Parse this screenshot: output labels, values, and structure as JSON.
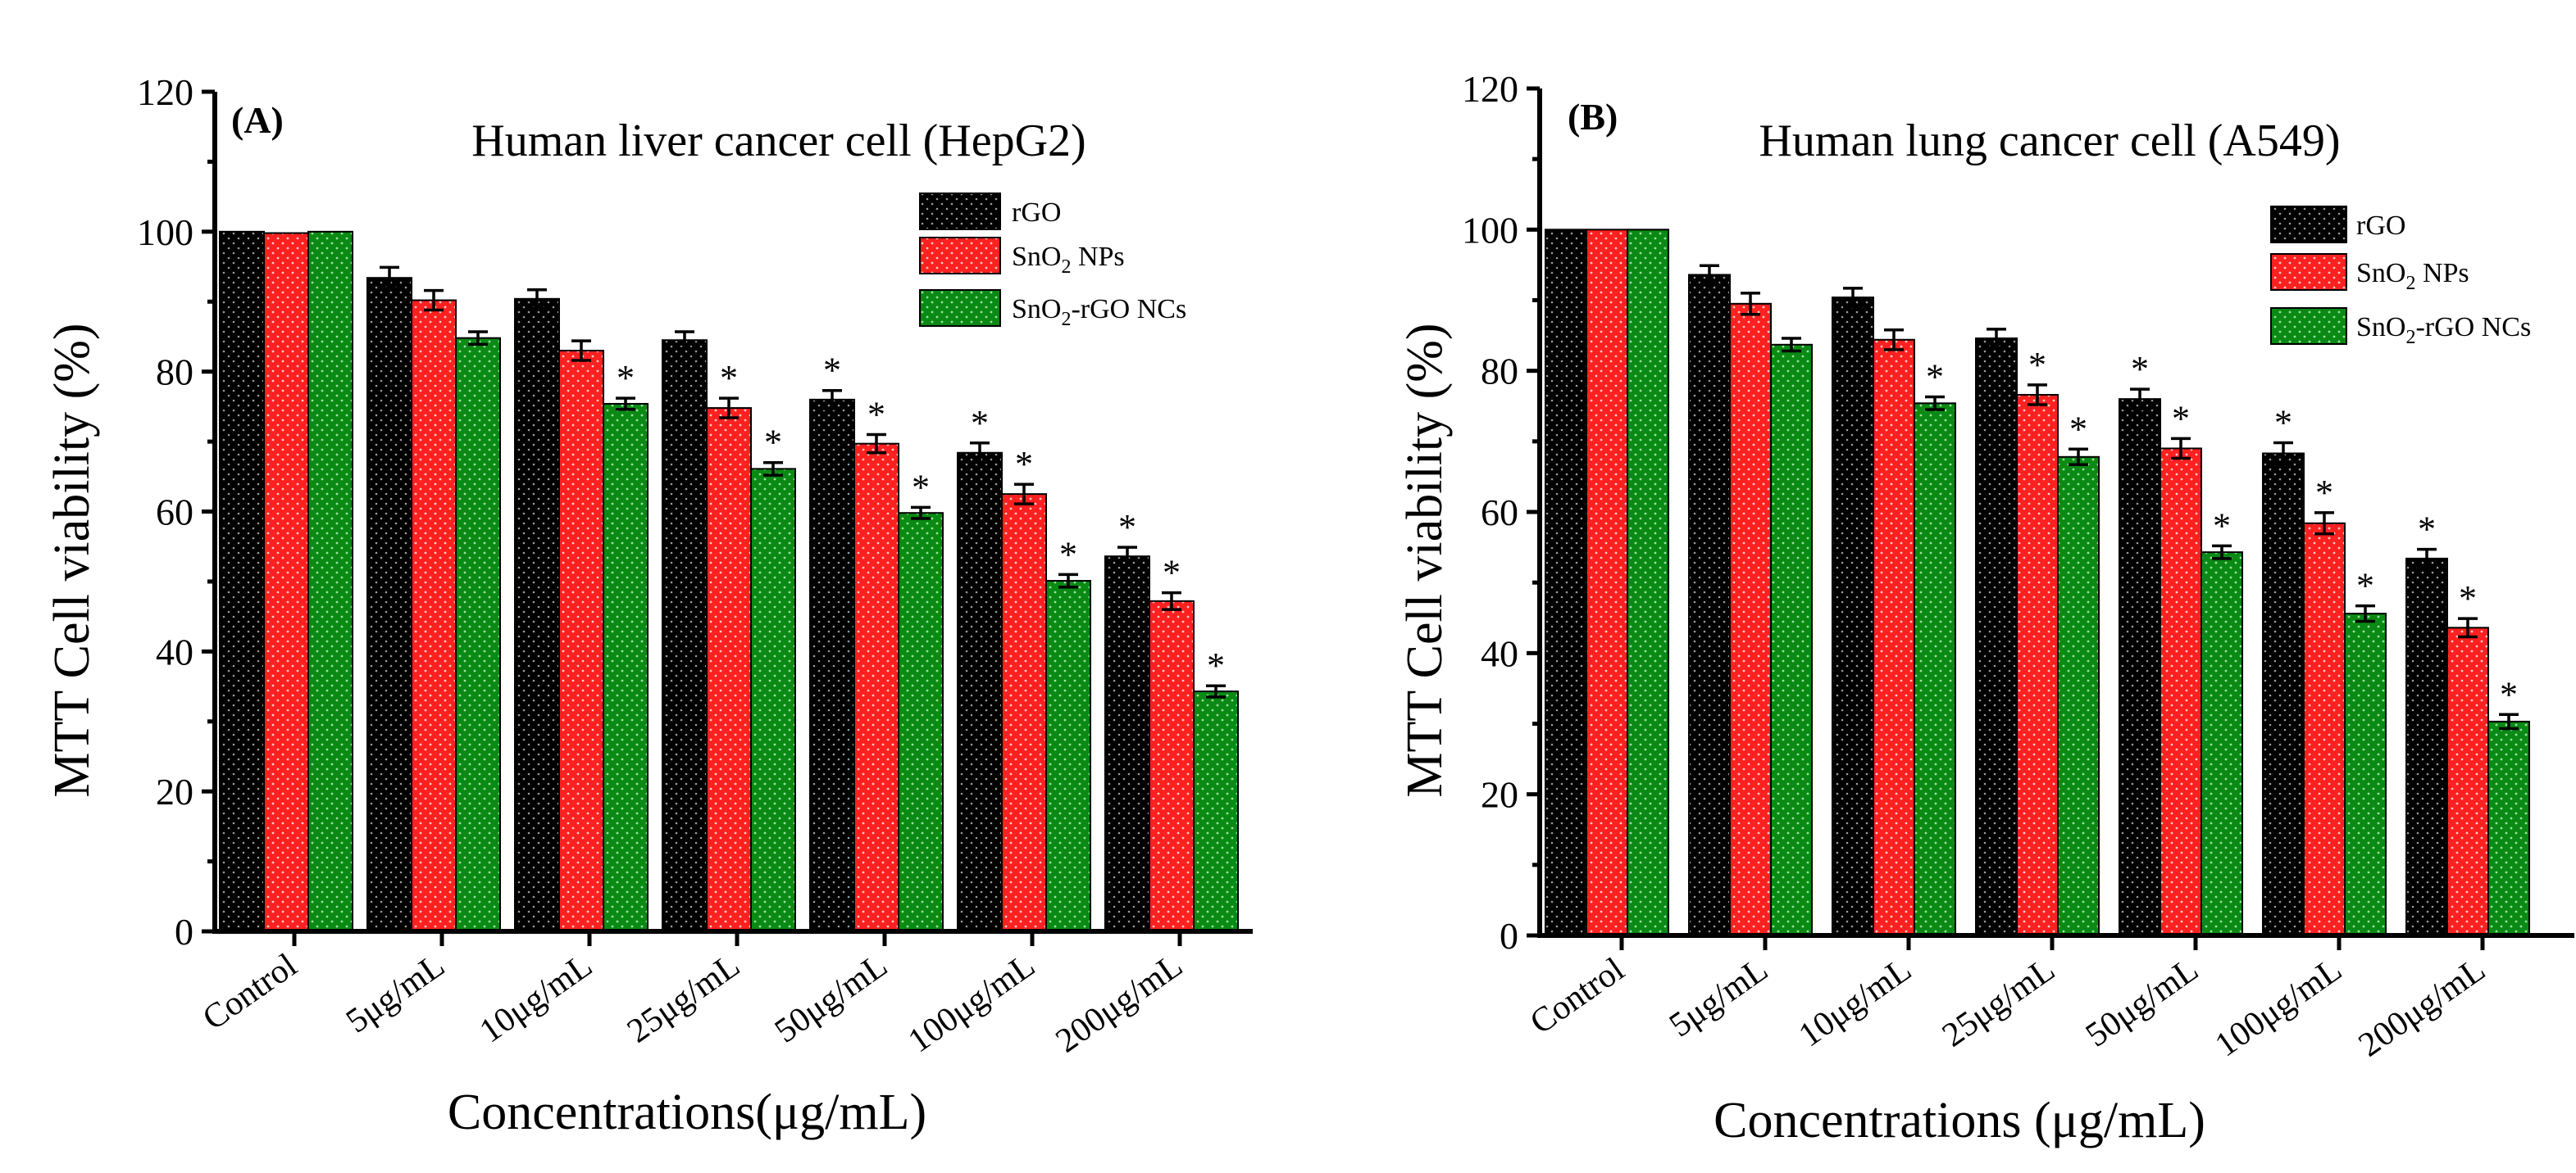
{
  "colors": {
    "rGO": "#000000",
    "SnO2 NPs": "#ff2020",
    "SnO2-rGO NCs": "#0a8a14"
  },
  "chart_data": [
    {
      "type": "bar",
      "panel": "(A)",
      "title": "Human liver cancer cell (HepG2)",
      "xlabel": "Concentrations(μg/mL)",
      "ylabel": "MTT Cell viability (%)",
      "ylim": [
        0,
        120
      ],
      "yticks": [
        "0",
        "20",
        "40",
        "60",
        "80",
        "100",
        "120"
      ],
      "legend_position": "top-right",
      "categories": [
        "Control",
        "5μg/mL",
        "10μg/mL",
        "25μg/mL",
        "50μg/mL",
        "100μg/mL",
        "200μg/mL"
      ],
      "series": [
        {
          "name": "rGO",
          "values": [
            100,
            93.4,
            90.4,
            84.5,
            76,
            68.4,
            53.6
          ],
          "errors": [
            0,
            1.5,
            1.3,
            1.2,
            1.3,
            1.4,
            1.3
          ],
          "significant": [
            false,
            false,
            false,
            false,
            true,
            true,
            true
          ]
        },
        {
          "name": "SnO2 NPs",
          "values": [
            99.8,
            90.2,
            83,
            74.8,
            69.7,
            62.5,
            47.2
          ],
          "errors": [
            0,
            1.4,
            1.4,
            1.4,
            1.3,
            1.4,
            1.2
          ],
          "significant": [
            false,
            false,
            false,
            true,
            true,
            true,
            true
          ]
        },
        {
          "name": "SnO2-rGO NCs",
          "values": [
            100,
            84.8,
            75.4,
            66.1,
            59.8,
            50.1,
            34.3
          ],
          "errors": [
            0,
            0.9,
            0.8,
            0.9,
            0.8,
            0.9,
            0.8
          ],
          "significant": [
            false,
            false,
            true,
            true,
            true,
            true,
            true
          ]
        }
      ],
      "legend": [
        "rGO",
        "SnO2 NPs",
        "SnO2-rGO NCs"
      ],
      "annotation": "*"
    },
    {
      "type": "bar",
      "panel": "(B)",
      "title": "Human lung cancer cell (A549)",
      "xlabel": "Concentrations (μg/mL)",
      "ylabel": "MTT Cell viability (%)",
      "ylim": [
        0,
        120
      ],
      "yticks": [
        "0",
        "20",
        "40",
        "60",
        "80",
        "100",
        "120"
      ],
      "legend_position": "top-right",
      "categories": [
        "Control",
        "5μg/mL",
        "10μg/mL",
        "25μg/mL",
        "50μg/mL",
        "100μg/mL",
        "200μg/mL"
      ],
      "series": [
        {
          "name": "rGO",
          "values": [
            100,
            93.6,
            90.4,
            84.6,
            76,
            68.3,
            53.4
          ],
          "errors": [
            0,
            1.3,
            1.3,
            1.3,
            1.4,
            1.5,
            1.3
          ],
          "significant": [
            false,
            false,
            false,
            false,
            true,
            true,
            true
          ]
        },
        {
          "name": "SnO2 NPs",
          "values": [
            100,
            89.5,
            84.4,
            76.6,
            69,
            58.4,
            43.6
          ],
          "errors": [
            0,
            1.5,
            1.4,
            1.4,
            1.4,
            1.5,
            1.3
          ],
          "significant": [
            false,
            false,
            false,
            true,
            true,
            true,
            true
          ]
        },
        {
          "name": "SnO2-rGO NCs",
          "values": [
            100,
            83.7,
            75.4,
            67.8,
            54.3,
            45.6,
            30.3
          ],
          "errors": [
            0,
            0.9,
            0.9,
            1.1,
            0.9,
            1.1,
            1.0
          ],
          "significant": [
            false,
            false,
            true,
            true,
            true,
            true,
            true
          ]
        }
      ],
      "legend": [
        "rGO",
        "SnO2 NPs",
        "SnO2-rGO NCs"
      ],
      "annotation": "*"
    }
  ]
}
